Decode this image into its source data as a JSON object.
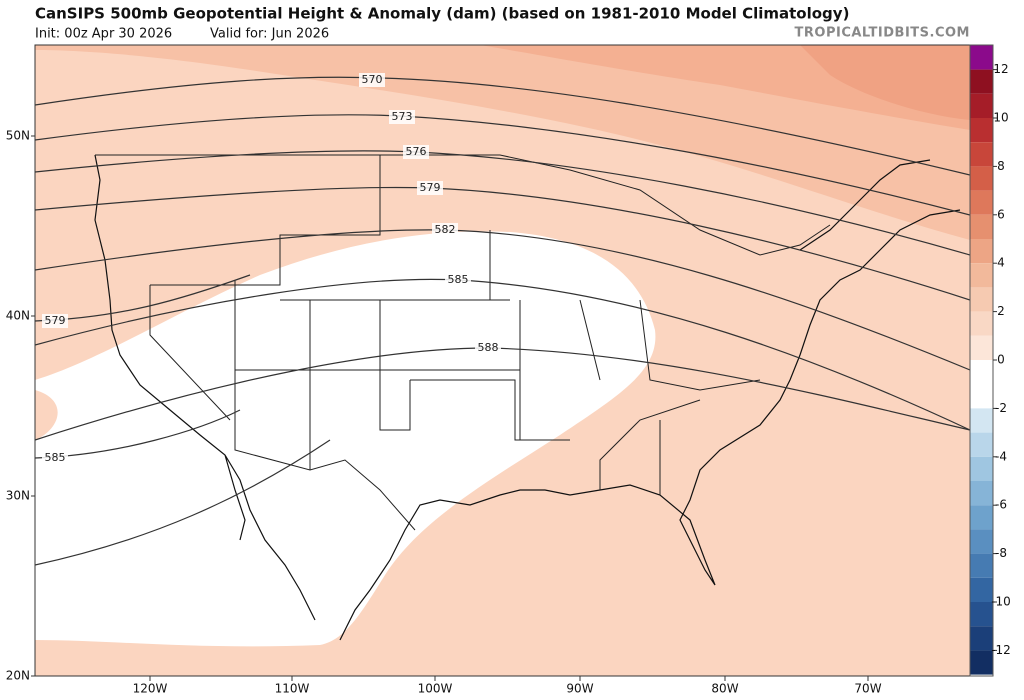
{
  "header": {
    "title": "CanSIPS 500mb Geopotential Height & Anomaly (dam) (based on 1981-2010 Model Climatology)",
    "init": "Init: 00z Apr 30 2026",
    "valid": "Valid for: Jun 2026",
    "site": "TROPICALTIDBITS.COM"
  },
  "map": {
    "lat_labels": [
      "50N",
      "40N",
      "30N",
      "20N"
    ],
    "lon_labels": [
      "120W",
      "110W",
      "100W",
      "90W",
      "80W",
      "70W"
    ],
    "contours": [
      {
        "label": "570"
      },
      {
        "label": "573"
      },
      {
        "label": "576"
      },
      {
        "label": "579"
      },
      {
        "label": "582"
      },
      {
        "label": "585"
      },
      {
        "label": "588"
      },
      {
        "label": "579"
      },
      {
        "label": "585"
      }
    ]
  },
  "colorbar": {
    "ticks": [
      12,
      10,
      8,
      6,
      4,
      2,
      0,
      -2,
      -4,
      -6,
      -8,
      -10,
      -12
    ],
    "colors": [
      "#8b0a8b",
      "#8e1020",
      "#a51d28",
      "#b92f30",
      "#c8463a",
      "#d45f48",
      "#de785b",
      "#e6906f",
      "#eda585",
      "#f2b99b",
      "#f6cab1",
      "#f9d8c5",
      "#fce6d9",
      "#ffffff",
      "#ffffff",
      "#d3e6f2",
      "#b9d6ea",
      "#9fc6e1",
      "#86b4d7",
      "#6ea2cc",
      "#5a8fc0",
      "#467bb2",
      "#3366a2",
      "#26528f",
      "#1b3f79",
      "#122e62"
    ]
  }
}
